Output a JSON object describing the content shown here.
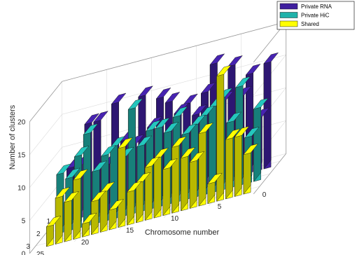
{
  "chart_data": {
    "type": "bar3d",
    "title": "",
    "xlabel": "Chromosome number",
    "ylabel": "",
    "zlabel": "Number of clusters",
    "chromosome_ticks": [
      "0",
      "5",
      "10",
      "15",
      "20",
      "25"
    ],
    "row_ticks": [
      "1",
      "2",
      "3"
    ],
    "z_ticks": [
      "0",
      "5",
      "10",
      "15",
      "20"
    ],
    "zlim": [
      0,
      20
    ],
    "legend_position": "top-right",
    "grid": true,
    "chromosomes": [
      1,
      2,
      3,
      4,
      5,
      6,
      7,
      8,
      9,
      10,
      11,
      12,
      13,
      14,
      15,
      16,
      17,
      18,
      19,
      20,
      21,
      22,
      23
    ],
    "series": [
      {
        "name": "Private RNA",
        "color": "#3f1f9e",
        "values": [
          16,
          8,
          15,
          12,
          17,
          12,
          18,
          14,
          11,
          13,
          12,
          14,
          15,
          11,
          16,
          9,
          10,
          16,
          7,
          14,
          14,
          8,
          8
        ]
      },
      {
        "name": "Private HiC",
        "color": "#20b2aa",
        "values": [
          11,
          7,
          15,
          10,
          14,
          13,
          12,
          11,
          10,
          13,
          11,
          12,
          12,
          10,
          16,
          9,
          11,
          10,
          8,
          14,
          11,
          8,
          9
        ]
      },
      {
        "name": "Shared",
        "color": "#ffff00",
        "values": [
          6,
          9,
          9,
          19,
          3,
          11,
          7,
          8,
          10,
          7,
          9,
          8,
          6,
          5,
          12,
          3,
          6,
          5,
          2,
          9,
          6,
          7,
          3
        ]
      }
    ]
  }
}
